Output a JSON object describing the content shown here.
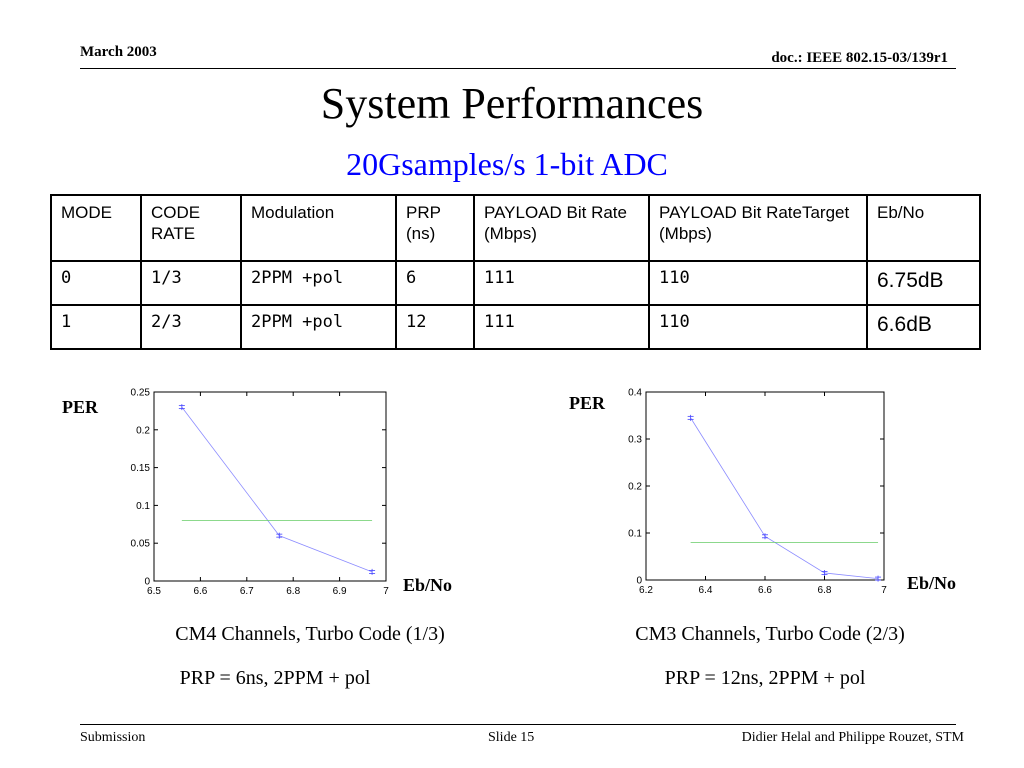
{
  "header": {
    "date": "March 2003",
    "doc": "doc.: IEEE 802.15-03/139r1"
  },
  "title": "System Performances",
  "subtitle": "20Gsamples/s 1-bit ADC",
  "table": {
    "headers": [
      "MODE",
      "CODE RATE",
      "Modulation",
      "PRP (ns)",
      "PAYLOAD Bit Rate (Mbps)",
      "PAYLOAD Bit RateTarget (Mbps)",
      "Eb/No"
    ],
    "rows": [
      [
        "0",
        "1/3",
        "2PPM +pol",
        "6",
        "111",
        "110",
        "6.75dB"
      ],
      [
        "1",
        "2/3",
        "2PPM +pol",
        "12",
        "111",
        "110",
        "6.6dB"
      ]
    ]
  },
  "charts": {
    "left": {
      "ylabel": "PER",
      "xlabel": "Eb/No",
      "caption1": "CM4 Channels, Turbo Code (1/3)",
      "caption2": "PRP = 6ns, 2PPM + pol"
    },
    "right": {
      "ylabel": "PER",
      "xlabel": "Eb/No",
      "caption1": "CM3 Channels, Turbo Code (2/3)",
      "caption2": "PRP = 12ns, 2PPM + pol"
    }
  },
  "chart_data": [
    {
      "type": "line",
      "xlim": [
        6.5,
        7
      ],
      "ylim": [
        0,
        0.25
      ],
      "xticks": [
        "6.5",
        "6.6",
        "6.7",
        "6.8",
        "6.9",
        "7"
      ],
      "yticks": [
        "0",
        "0.05",
        "0.1",
        "0.15",
        "0.2",
        "0.25"
      ],
      "series": [
        {
          "x": [
            6.56,
            6.77,
            6.97
          ],
          "y": [
            0.23,
            0.06,
            0.012
          ],
          "color": "#8c8cff",
          "markers": true
        },
        {
          "x": [
            6.56,
            6.97
          ],
          "y": [
            0.08,
            0.08
          ],
          "color": "#66cc66",
          "markers": false
        }
      ],
      "grid": false
    },
    {
      "type": "line",
      "xlim": [
        6.2,
        7
      ],
      "ylim": [
        0,
        0.4
      ],
      "xticks": [
        "6.2",
        "6.4",
        "6.6",
        "6.8",
        "7"
      ],
      "yticks": [
        "0",
        "0.1",
        "0.2",
        "0.3",
        "0.4"
      ],
      "series": [
        {
          "x": [
            6.35,
            6.6,
            6.8,
            6.98
          ],
          "y": [
            0.345,
            0.093,
            0.015,
            0.003
          ],
          "color": "#8c8cff",
          "markers": true
        },
        {
          "x": [
            6.35,
            6.98
          ],
          "y": [
            0.08,
            0.08
          ],
          "color": "#66cc66",
          "markers": false
        }
      ],
      "grid": false
    }
  ],
  "footer": {
    "left": "Submission",
    "center": "Slide 15",
    "right": "Didier Helal and Philippe Rouzet, STM"
  }
}
